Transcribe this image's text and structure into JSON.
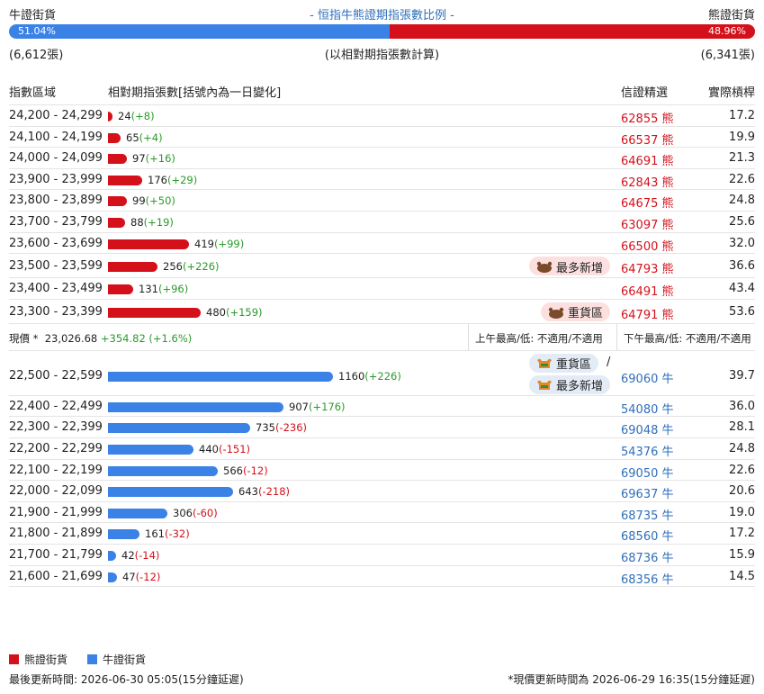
{
  "header": {
    "bull_label": "牛證街貨",
    "title": "- 恒指牛熊證期指張數比例 -",
    "bear_label": "熊證街貨",
    "bull_pct": "51.04%",
    "bear_pct": "48.96%",
    "bull_fraction": 0.5104,
    "bull_count": "(6,612張)",
    "note": "(以相對期指張數計算)",
    "bear_count": "(6,341張)"
  },
  "columns": {
    "range": "指數區域",
    "contracts": "相對期指張數[括號內為一日變化]",
    "top_issuer": "信證精選",
    "leverage": "實際槓桿"
  },
  "colors": {
    "bull": "#3b82e6",
    "bear": "#d4111a",
    "up": "#2b9a2b",
    "down": "#d4111a"
  },
  "bear_rows": [
    {
      "range": "24,200 - 24,299",
      "count": "24",
      "change": "+8",
      "value": 24,
      "strike": "62855",
      "unit": "熊",
      "lev": "17.2",
      "badge": ""
    },
    {
      "range": "24,100 - 24,199",
      "count": "65",
      "change": "+4",
      "value": 65,
      "strike": "66537",
      "unit": "熊",
      "lev": "19.9",
      "badge": ""
    },
    {
      "range": "24,000 - 24,099",
      "count": "97",
      "change": "+16",
      "value": 97,
      "strike": "64691",
      "unit": "熊",
      "lev": "21.3",
      "badge": ""
    },
    {
      "range": "23,900 - 23,999",
      "count": "176",
      "change": "+29",
      "value": 176,
      "strike": "62843",
      "unit": "熊",
      "lev": "22.6",
      "badge": ""
    },
    {
      "range": "23,800 - 23,899",
      "count": "99",
      "change": "+50",
      "value": 99,
      "strike": "64675",
      "unit": "熊",
      "lev": "24.8",
      "badge": ""
    },
    {
      "range": "23,700 - 23,799",
      "count": "88",
      "change": "+19",
      "value": 88,
      "strike": "63097",
      "unit": "熊",
      "lev": "25.6",
      "badge": ""
    },
    {
      "range": "23,600 - 23,699",
      "count": "419",
      "change": "+99",
      "value": 419,
      "strike": "66500",
      "unit": "熊",
      "lev": "32.0",
      "badge": ""
    },
    {
      "range": "23,500 - 23,599",
      "count": "256",
      "change": "+226",
      "value": 256,
      "strike": "64793",
      "unit": "熊",
      "lev": "36.6",
      "badge": "最多新增"
    },
    {
      "range": "23,400 - 23,499",
      "count": "131",
      "change": "+96",
      "value": 131,
      "strike": "66491",
      "unit": "熊",
      "lev": "43.4",
      "badge": ""
    },
    {
      "range": "23,300 - 23,399",
      "count": "480",
      "change": "+159",
      "value": 480,
      "strike": "64791",
      "unit": "熊",
      "lev": "53.6",
      "badge": "重貨區"
    }
  ],
  "price": {
    "label": "現價 *",
    "value": "23,026.68",
    "change": "+354.82 (+1.6%)",
    "am": "上午最高/低: 不適用/不適用",
    "pm": "下午最高/低: 不適用/不適用"
  },
  "bull_rows": [
    {
      "range": "22,500 - 22,599",
      "count": "1160",
      "change": "+226",
      "value": 1160,
      "strike": "69060",
      "unit": "牛",
      "lev": "39.7",
      "badge": "重貨區",
      "badge2": "最多新增",
      "slash": "/"
    },
    {
      "range": "22,400 - 22,499",
      "count": "907",
      "change": "+176",
      "value": 907,
      "strike": "54080",
      "unit": "牛",
      "lev": "36.0",
      "badge": ""
    },
    {
      "range": "22,300 - 22,399",
      "count": "735",
      "change": "-236",
      "value": 735,
      "strike": "69048",
      "unit": "牛",
      "lev": "28.1",
      "badge": ""
    },
    {
      "range": "22,200 - 22,299",
      "count": "440",
      "change": "-151",
      "value": 440,
      "strike": "54376",
      "unit": "牛",
      "lev": "24.8",
      "badge": ""
    },
    {
      "range": "22,100 - 22,199",
      "count": "566",
      "change": "-12",
      "value": 566,
      "strike": "69050",
      "unit": "牛",
      "lev": "22.6",
      "badge": ""
    },
    {
      "range": "22,000 - 22,099",
      "count": "643",
      "change": "-218",
      "value": 643,
      "strike": "69637",
      "unit": "牛",
      "lev": "20.6",
      "badge": ""
    },
    {
      "range": "21,900 - 21,999",
      "count": "306",
      "change": "-60",
      "value": 306,
      "strike": "68735",
      "unit": "牛",
      "lev": "19.0",
      "badge": ""
    },
    {
      "range": "21,800 - 21,899",
      "count": "161",
      "change": "-32",
      "value": 161,
      "strike": "68560",
      "unit": "牛",
      "lev": "17.2",
      "badge": ""
    },
    {
      "range": "21,700 - 21,799",
      "count": "42",
      "change": "-14",
      "value": 42,
      "strike": "68736",
      "unit": "牛",
      "lev": "15.9",
      "badge": ""
    },
    {
      "range": "21,600 - 21,699",
      "count": "47",
      "change": "-12",
      "value": 47,
      "strike": "68356",
      "unit": "牛",
      "lev": "14.5",
      "badge": ""
    }
  ],
  "legend": {
    "bear": "熊證街貨",
    "bull": "牛證街貨"
  },
  "footer": {
    "updated": "最後更新時間: 2026-06-30 05:05(15分鐘延遲)",
    "price_updated": "*現價更新時間為 2026-06-29 16:35(15分鐘延遲)"
  }
}
